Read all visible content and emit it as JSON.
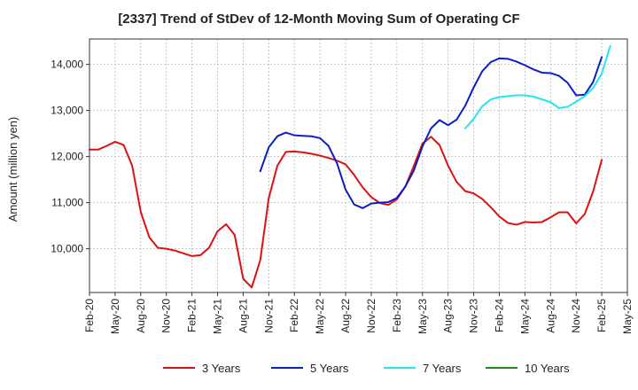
{
  "chart_data": {
    "type": "line",
    "title": "[2337]  Trend of StDev of 12-Month Moving Sum of Operating CF",
    "xlabel": "",
    "ylabel": "Amount (million yen)",
    "ylim": [
      9050,
      14550
    ],
    "yticks": [
      10000,
      11000,
      12000,
      13000,
      14000
    ],
    "ytick_labels": [
      "10,000",
      "11,000",
      "12,000",
      "13,000",
      "14,000"
    ],
    "x_tick_labels": [
      "Feb-20",
      "May-20",
      "Aug-20",
      "Nov-20",
      "Feb-21",
      "May-21",
      "Aug-21",
      "Nov-21",
      "Feb-22",
      "May-22",
      "Aug-22",
      "Nov-22",
      "Feb-23",
      "May-23",
      "Aug-23",
      "Nov-23",
      "Feb-24",
      "May-24",
      "Aug-24",
      "Nov-24",
      "Feb-25",
      "May-25"
    ],
    "x_start": "Feb-20",
    "x_end": "May-25",
    "grid": true,
    "legend_position": "bottom",
    "series": [
      {
        "name": "3 Years",
        "color": "#dd1111",
        "start": "Feb-20",
        "values": [
          12150,
          12150,
          12230,
          12320,
          12250,
          11800,
          10800,
          10250,
          10020,
          10000,
          9960,
          9900,
          9840,
          9860,
          10020,
          10380,
          10530,
          10300,
          9350,
          9160,
          9750,
          11100,
          11800,
          12100,
          12110,
          12090,
          12060,
          12020,
          11970,
          11910,
          11830,
          11600,
          11330,
          11120,
          10990,
          10950,
          11070,
          11350,
          11800,
          12280,
          12430,
          12250,
          11800,
          11450,
          11250,
          11200,
          11080,
          10900,
          10700,
          10560,
          10520,
          10580,
          10570,
          10580,
          10680,
          10790,
          10790,
          10550,
          10750,
          11250,
          11930
        ]
      },
      {
        "name": "5 Years",
        "color": "#0a1fc8",
        "start": "Oct-21",
        "values": [
          11680,
          12200,
          12440,
          12520,
          12460,
          12450,
          12440,
          12400,
          12230,
          11850,
          11280,
          10960,
          10880,
          10980,
          11000,
          11010,
          11100,
          11350,
          11700,
          12220,
          12610,
          12790,
          12680,
          12800,
          13100,
          13500,
          13850,
          14050,
          14130,
          14120,
          14060,
          13980,
          13890,
          13820,
          13810,
          13750,
          13600,
          13330,
          13340,
          13620,
          14160
        ]
      },
      {
        "name": "7 Years",
        "color": "#22e6f0",
        "start": "Oct-23",
        "values": [
          12610,
          12820,
          13090,
          13240,
          13290,
          13310,
          13330,
          13330,
          13300,
          13240,
          13180,
          13050,
          13080,
          13190,
          13310,
          13490,
          13800,
          14400
        ]
      },
      {
        "name": "10 Years",
        "color": "#1a8a1a",
        "start": "Feb-25",
        "values": []
      }
    ]
  }
}
